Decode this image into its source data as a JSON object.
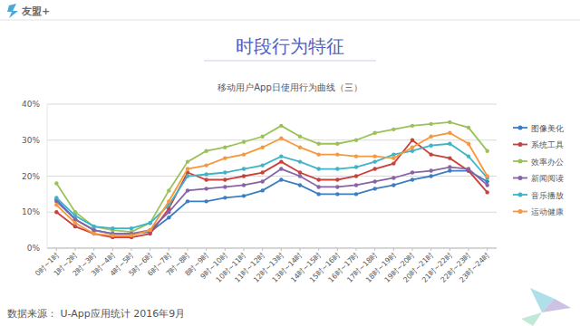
{
  "chart_data": {
    "type": "line",
    "brand": "友盟+",
    "title": "时段行为特征",
    "subtitle": "移动用户App日使用行为曲线（三）",
    "source": "数据来源： U-App应用统计 2016年9月",
    "categories": [
      "0时~1时",
      "1时~2时",
      "2时~3时",
      "3时~4时",
      "4时~5时",
      "5时~6时",
      "6时~7时",
      "7时~8时",
      "8时~9时",
      "9时~10时",
      "10时~11时",
      "11时~12时",
      "12时~13时",
      "13时~14时",
      "14时~15时",
      "15时~16时",
      "16时~17时",
      "17时~18时",
      "18时~19时",
      "19时~20时",
      "20时~21时",
      "21时~22时",
      "22时~23时",
      "23时~24时"
    ],
    "series": [
      {
        "name": "图像美化",
        "color": "#3a7fc4",
        "values": [
          13.5,
          8,
          5,
          4,
          4,
          4.5,
          8.5,
          13,
          13,
          14,
          14.5,
          16,
          19,
          17.5,
          15,
          15,
          15,
          16.5,
          17.5,
          19,
          20,
          21.5,
          21.5,
          18.5
        ]
      },
      {
        "name": "系统工具",
        "color": "#c9413b",
        "values": [
          10,
          6,
          4,
          3,
          3,
          4,
          11,
          21,
          19,
          19,
          20,
          21,
          24,
          21,
          19,
          19,
          20,
          22,
          23.5,
          30,
          26,
          25,
          21.5,
          15.5
        ]
      },
      {
        "name": "效率办公",
        "color": "#9bc257",
        "values": [
          18,
          10,
          6,
          5,
          4.5,
          7,
          16,
          24,
          27,
          28,
          29.5,
          31,
          34,
          31,
          29,
          29,
          30,
          32,
          33,
          34,
          34.5,
          35,
          33.5,
          27
        ]
      },
      {
        "name": "新闻阅读",
        "color": "#8764a8",
        "values": [
          13,
          8,
          5,
          4,
          4,
          5,
          10,
          16,
          16.5,
          17,
          17.5,
          18.5,
          22,
          20,
          17,
          17,
          17.5,
          18.5,
          19.5,
          21,
          21.5,
          22.5,
          22,
          17.5
        ]
      },
      {
        "name": "音乐播放",
        "color": "#3cb4c9",
        "values": [
          14,
          9,
          6,
          5.5,
          5.5,
          7,
          12,
          20,
          20.5,
          21,
          22,
          23,
          25.5,
          24,
          22,
          22,
          22.5,
          24,
          26,
          27,
          28.5,
          29,
          25.5,
          19.5
        ]
      },
      {
        "name": "运动健康",
        "color": "#f7983c",
        "values": [
          12,
          7,
          4,
          3.5,
          3.5,
          5,
          13,
          22,
          23,
          25,
          26,
          28,
          30.5,
          28,
          26,
          26,
          25.5,
          25.5,
          25,
          28,
          31,
          32,
          29,
          20
        ]
      }
    ],
    "ylim": [
      0,
      40
    ],
    "yticks": [
      {
        "value": 0,
        "label": "0%"
      },
      {
        "value": 10,
        "label": "10%"
      },
      {
        "value": 20,
        "label": "20%"
      },
      {
        "value": 30,
        "label": "30%"
      },
      {
        "value": 40,
        "label": "40%"
      }
    ],
    "grid": true,
    "legend": "right",
    "marker": "circle"
  }
}
